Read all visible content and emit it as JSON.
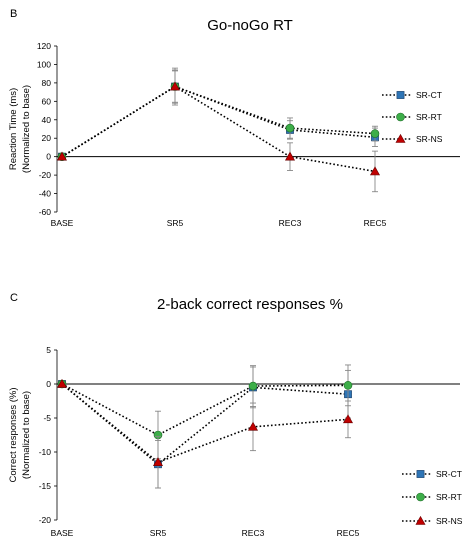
{
  "chart_data": [
    {
      "panel": "B",
      "type": "line",
      "title": "Go-noGo RT",
      "ylabel_line1": "Reaction Time (ms)",
      "ylabel_line2": "(Normalized to base)",
      "xlabel": "",
      "categories": [
        "BASE",
        "SR5",
        "REC3",
        "REC5"
      ],
      "ylim": [
        -60,
        120
      ],
      "yticks": [
        -60,
        -40,
        -20,
        0,
        20,
        40,
        60,
        80,
        100,
        120
      ],
      "grid": false,
      "legend_position": "right",
      "series": [
        {
          "name": "SR-CT",
          "marker": "square",
          "color": "#2E75B6",
          "values": [
            0,
            76,
            29,
            21
          ],
          "err": [
            0,
            17,
            10,
            10
          ]
        },
        {
          "name": "SR-RT",
          "marker": "circle",
          "color": "#3DAE49",
          "values": [
            0,
            76,
            31,
            25
          ],
          "err": [
            0,
            18,
            11,
            8
          ]
        },
        {
          "name": "SR-NS",
          "marker": "triangle",
          "color": "#C00000",
          "values": [
            0,
            76,
            0,
            -16
          ],
          "err": [
            0,
            20,
            15,
            22
          ]
        }
      ]
    },
    {
      "panel": "C",
      "type": "line",
      "title": "2-back correct responses %",
      "ylabel_line1": "Correct responses (%)",
      "ylabel_line2": "(Normalized to base)",
      "xlabel": "",
      "categories": [
        "BASE",
        "SR5",
        "REC3",
        "REC5"
      ],
      "ylim": [
        -20,
        5
      ],
      "yticks": [
        -20,
        -15,
        -10,
        -5,
        0,
        5
      ],
      "grid": false,
      "legend_position": "bottom-right",
      "series": [
        {
          "name": "SR-CT",
          "marker": "square",
          "color": "#2E75B6",
          "values": [
            0,
            -11.8,
            -0.5,
            -1.5
          ],
          "err": [
            0,
            3.5,
            3,
            3.5
          ]
        },
        {
          "name": "SR-RT",
          "marker": "circle",
          "color": "#3DAE49",
          "values": [
            0,
            -7.5,
            -0.3,
            -0.2
          ],
          "err": [
            0,
            3.5,
            3,
            3
          ]
        },
        {
          "name": "SR-NS",
          "marker": "triangle",
          "color": "#C00000",
          "values": [
            0,
            -11.5,
            -6.3,
            -5.2
          ],
          "err": [
            0,
            3.8,
            3.5,
            2.7
          ]
        }
      ]
    }
  ]
}
